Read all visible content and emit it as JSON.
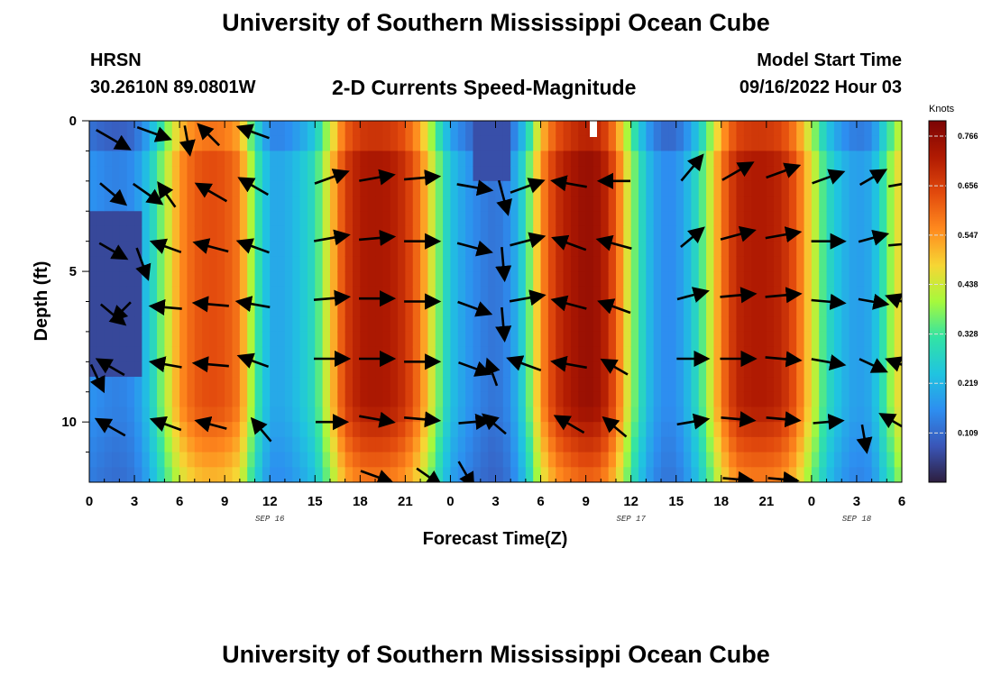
{
  "header": {
    "title_top": "University of Southern Mississippi Ocean Cube",
    "title_bottom": "University of Southern Mississippi Ocean Cube",
    "station": "HRSN",
    "location": "30.2610N  89.0801W",
    "product": "2-D Currents Speed-Magnitude",
    "model_start_label": "Model Start Time",
    "model_start_value": "09/16/2022 Hour 03"
  },
  "chart_data": {
    "type": "heatmap",
    "title": "2-D Currents Speed-Magnitude",
    "xlabel": "Forecast Time(Z)",
    "ylabel": "Depth (ft)",
    "x_range_hours_from_sep16_00z": [
      0,
      54
    ],
    "ylim_depth_ft": [
      0,
      12
    ],
    "x_ticks": [
      {
        "hour": 0,
        "label": "0"
      },
      {
        "hour": 3,
        "label": "3"
      },
      {
        "hour": 6,
        "label": "6"
      },
      {
        "hour": 9,
        "label": "9"
      },
      {
        "hour": 12,
        "label": "12"
      },
      {
        "hour": 15,
        "label": "15"
      },
      {
        "hour": 18,
        "label": "18"
      },
      {
        "hour": 21,
        "label": "21"
      },
      {
        "hour": 24,
        "label": "0"
      },
      {
        "hour": 27,
        "label": "3"
      },
      {
        "hour": 30,
        "label": "6"
      },
      {
        "hour": 33,
        "label": "9"
      },
      {
        "hour": 36,
        "label": "12"
      },
      {
        "hour": 39,
        "label": "15"
      },
      {
        "hour": 42,
        "label": "18"
      },
      {
        "hour": 45,
        "label": "21"
      },
      {
        "hour": 48,
        "label": "0"
      },
      {
        "hour": 51,
        "label": "3"
      },
      {
        "hour": 54,
        "label": "6"
      }
    ],
    "date_labels": [
      {
        "hour": 12,
        "label": "SEP 16"
      },
      {
        "hour": 36,
        "label": "SEP 17"
      },
      {
        "hour": 51,
        "label": "SEP 18"
      }
    ],
    "y_ticks": [
      {
        "depth": 0,
        "label": "0"
      },
      {
        "depth": 5,
        "label": "5"
      },
      {
        "depth": 10,
        "label": "10"
      }
    ],
    "colorbar": {
      "unit": "Knots",
      "ticks": [
        "0.766",
        "0.656",
        "0.547",
        "0.438",
        "0.328",
        "0.219",
        "0.109"
      ],
      "min": 0.0,
      "max": 0.8
    },
    "speed_profile_by_hour_knots": [
      [
        0,
        0.17
      ],
      [
        1,
        0.15
      ],
      [
        2,
        0.14
      ],
      [
        3,
        0.16
      ],
      [
        4,
        0.25
      ],
      [
        5,
        0.4
      ],
      [
        6,
        0.55
      ],
      [
        7,
        0.62
      ],
      [
        8,
        0.64
      ],
      [
        9,
        0.63
      ],
      [
        10,
        0.58
      ],
      [
        11,
        0.35
      ],
      [
        12,
        0.2
      ],
      [
        13,
        0.2
      ],
      [
        14,
        0.24
      ],
      [
        15,
        0.3
      ],
      [
        16,
        0.48
      ],
      [
        17,
        0.66
      ],
      [
        18,
        0.72
      ],
      [
        19,
        0.73
      ],
      [
        20,
        0.72
      ],
      [
        21,
        0.68
      ],
      [
        22,
        0.58
      ],
      [
        23,
        0.4
      ],
      [
        24,
        0.24
      ],
      [
        25,
        0.18
      ],
      [
        26,
        0.14
      ],
      [
        27,
        0.12
      ],
      [
        28,
        0.16
      ],
      [
        29,
        0.3
      ],
      [
        30,
        0.55
      ],
      [
        31,
        0.68
      ],
      [
        32,
        0.73
      ],
      [
        33,
        0.76
      ],
      [
        34,
        0.74
      ],
      [
        35,
        0.62
      ],
      [
        36,
        0.4
      ],
      [
        37,
        0.24
      ],
      [
        38,
        0.16
      ],
      [
        39,
        0.16
      ],
      [
        40,
        0.24
      ],
      [
        41,
        0.38
      ],
      [
        42,
        0.58
      ],
      [
        43,
        0.7
      ],
      [
        44,
        0.72
      ],
      [
        45,
        0.72
      ],
      [
        46,
        0.7
      ],
      [
        47,
        0.62
      ],
      [
        48,
        0.46
      ],
      [
        49,
        0.3
      ],
      [
        50,
        0.22
      ],
      [
        51,
        0.18
      ],
      [
        52,
        0.2
      ],
      [
        53,
        0.35
      ],
      [
        54,
        0.5
      ]
    ],
    "vectors": [
      {
        "hour": 1.5,
        "depth": 0.6,
        "angle_deg": -30,
        "length": 40
      },
      {
        "hour": 4.2,
        "depth": 0.4,
        "angle_deg": -20,
        "length": 36
      },
      {
        "hour": 6.5,
        "depth": 0.6,
        "angle_deg": -80,
        "length": 30
      },
      {
        "hour": 8.0,
        "depth": 0.5,
        "angle_deg": 135,
        "length": 30
      },
      {
        "hour": 11.0,
        "depth": 0.4,
        "angle_deg": 160,
        "length": 34
      },
      {
        "hour": 1.5,
        "depth": 2.4,
        "angle_deg": -40,
        "length": 34
      },
      {
        "hour": 3.8,
        "depth": 2.4,
        "angle_deg": -35,
        "length": 36
      },
      {
        "hour": 5.2,
        "depth": 2.5,
        "angle_deg": 125,
        "length": 30
      },
      {
        "hour": 8.2,
        "depth": 2.4,
        "angle_deg": 150,
        "length": 36
      },
      {
        "hour": 11.0,
        "depth": 2.2,
        "angle_deg": 150,
        "length": 34
      },
      {
        "hour": 16.0,
        "depth": 1.9,
        "angle_deg": 20,
        "length": 36
      },
      {
        "hour": 19.0,
        "depth": 1.9,
        "angle_deg": 10,
        "length": 36
      },
      {
        "hour": 22.0,
        "depth": 1.9,
        "angle_deg": 5,
        "length": 36
      },
      {
        "hour": 25.5,
        "depth": 2.2,
        "angle_deg": -10,
        "length": 36
      },
      {
        "hour": 27.5,
        "depth": 2.5,
        "angle_deg": -75,
        "length": 36
      },
      {
        "hour": 29.0,
        "depth": 2.2,
        "angle_deg": 20,
        "length": 36
      },
      {
        "hour": 32.0,
        "depth": 2.1,
        "angle_deg": 170,
        "length": 36
      },
      {
        "hour": 35.0,
        "depth": 2.0,
        "angle_deg": 180,
        "length": 32
      },
      {
        "hour": 40.0,
        "depth": 1.6,
        "angle_deg": 50,
        "length": 34
      },
      {
        "hour": 43.0,
        "depth": 1.7,
        "angle_deg": 30,
        "length": 36
      },
      {
        "hour": 46.0,
        "depth": 1.7,
        "angle_deg": 20,
        "length": 36
      },
      {
        "hour": 49.0,
        "depth": 1.9,
        "angle_deg": 20,
        "length": 34
      },
      {
        "hour": 52.0,
        "depth": 1.9,
        "angle_deg": 30,
        "length": 30
      },
      {
        "hour": 54.0,
        "depth": 2.1,
        "angle_deg": 10,
        "length": 30
      },
      {
        "hour": 1.5,
        "depth": 4.3,
        "angle_deg": -30,
        "length": 32
      },
      {
        "hour": 3.5,
        "depth": 4.7,
        "angle_deg": -70,
        "length": 34
      },
      {
        "hour": 5.2,
        "depth": 4.2,
        "angle_deg": 160,
        "length": 32
      },
      {
        "hour": 8.2,
        "depth": 4.2,
        "angle_deg": 165,
        "length": 36
      },
      {
        "hour": 11.0,
        "depth": 4.2,
        "angle_deg": 160,
        "length": 34
      },
      {
        "hour": 16.0,
        "depth": 3.9,
        "angle_deg": 10,
        "length": 36
      },
      {
        "hour": 19.0,
        "depth": 3.9,
        "angle_deg": 5,
        "length": 36
      },
      {
        "hour": 22.0,
        "depth": 4.0,
        "angle_deg": 0,
        "length": 36
      },
      {
        "hour": 25.5,
        "depth": 4.2,
        "angle_deg": -15,
        "length": 36
      },
      {
        "hour": 27.5,
        "depth": 4.7,
        "angle_deg": -85,
        "length": 34
      },
      {
        "hour": 29.0,
        "depth": 4.0,
        "angle_deg": 15,
        "length": 36
      },
      {
        "hour": 32.0,
        "depth": 4.1,
        "angle_deg": 160,
        "length": 36
      },
      {
        "hour": 35.0,
        "depth": 4.1,
        "angle_deg": 165,
        "length": 36
      },
      {
        "hour": 40.0,
        "depth": 3.9,
        "angle_deg": 40,
        "length": 30
      },
      {
        "hour": 43.0,
        "depth": 3.8,
        "angle_deg": 15,
        "length": 36
      },
      {
        "hour": 46.0,
        "depth": 3.8,
        "angle_deg": 10,
        "length": 36
      },
      {
        "hour": 49.0,
        "depth": 4.0,
        "angle_deg": 0,
        "length": 34
      },
      {
        "hour": 52.0,
        "depth": 3.9,
        "angle_deg": 15,
        "length": 30
      },
      {
        "hour": 54.0,
        "depth": 4.1,
        "angle_deg": 5,
        "length": 30
      },
      {
        "hour": 1.5,
        "depth": 6.4,
        "angle_deg": -40,
        "length": 32
      },
      {
        "hour": 2.2,
        "depth": 6.3,
        "angle_deg": -135,
        "length": 26
      },
      {
        "hour": 5.2,
        "depth": 6.2,
        "angle_deg": 175,
        "length": 32
      },
      {
        "hour": 8.2,
        "depth": 6.1,
        "angle_deg": 175,
        "length": 36
      },
      {
        "hour": 11.0,
        "depth": 6.1,
        "angle_deg": 170,
        "length": 34
      },
      {
        "hour": 16.0,
        "depth": 5.9,
        "angle_deg": 5,
        "length": 36
      },
      {
        "hour": 19.0,
        "depth": 5.9,
        "angle_deg": 0,
        "length": 36
      },
      {
        "hour": 22.0,
        "depth": 6.0,
        "angle_deg": 0,
        "length": 36
      },
      {
        "hour": 25.5,
        "depth": 6.2,
        "angle_deg": -20,
        "length": 36
      },
      {
        "hour": 27.5,
        "depth": 6.7,
        "angle_deg": -85,
        "length": 34
      },
      {
        "hour": 29.0,
        "depth": 5.9,
        "angle_deg": 10,
        "length": 36
      },
      {
        "hour": 32.0,
        "depth": 6.1,
        "angle_deg": 165,
        "length": 36
      },
      {
        "hour": 35.0,
        "depth": 6.2,
        "angle_deg": 160,
        "length": 34
      },
      {
        "hour": 40.0,
        "depth": 5.8,
        "angle_deg": 15,
        "length": 32
      },
      {
        "hour": 43.0,
        "depth": 5.8,
        "angle_deg": 5,
        "length": 36
      },
      {
        "hour": 46.0,
        "depth": 5.8,
        "angle_deg": 5,
        "length": 36
      },
      {
        "hour": 49.0,
        "depth": 6.0,
        "angle_deg": -5,
        "length": 34
      },
      {
        "hour": 52.0,
        "depth": 6.0,
        "angle_deg": -10,
        "length": 30
      },
      {
        "hour": 54.0,
        "depth": 6.0,
        "angle_deg": 160,
        "length": 30
      },
      {
        "hour": 0.5,
        "depth": 8.5,
        "angle_deg": -65,
        "length": 30
      },
      {
        "hour": 1.5,
        "depth": 8.2,
        "angle_deg": 150,
        "length": 32
      },
      {
        "hour": 5.2,
        "depth": 8.1,
        "angle_deg": 170,
        "length": 32
      },
      {
        "hour": 8.2,
        "depth": 8.1,
        "angle_deg": 175,
        "length": 36
      },
      {
        "hour": 11.0,
        "depth": 8.0,
        "angle_deg": 160,
        "length": 32
      },
      {
        "hour": 16.0,
        "depth": 7.9,
        "angle_deg": 0,
        "length": 36
      },
      {
        "hour": 19.0,
        "depth": 7.9,
        "angle_deg": 0,
        "length": 36
      },
      {
        "hour": 22.0,
        "depth": 8.0,
        "angle_deg": 0,
        "length": 36
      },
      {
        "hour": 25.5,
        "depth": 8.2,
        "angle_deg": -20,
        "length": 34
      },
      {
        "hour": 26.8,
        "depth": 8.4,
        "angle_deg": 110,
        "length": 28
      },
      {
        "hour": 29.0,
        "depth": 8.1,
        "angle_deg": 160,
        "length": 36
      },
      {
        "hour": 32.0,
        "depth": 8.1,
        "angle_deg": 170,
        "length": 36
      },
      {
        "hour": 35.0,
        "depth": 8.2,
        "angle_deg": 150,
        "length": 30
      },
      {
        "hour": 40.0,
        "depth": 7.9,
        "angle_deg": 0,
        "length": 32
      },
      {
        "hour": 43.0,
        "depth": 7.9,
        "angle_deg": 0,
        "length": 36
      },
      {
        "hour": 46.0,
        "depth": 7.9,
        "angle_deg": -5,
        "length": 36
      },
      {
        "hour": 49.0,
        "depth": 8.0,
        "angle_deg": -10,
        "length": 34
      },
      {
        "hour": 52.0,
        "depth": 8.1,
        "angle_deg": -25,
        "length": 30
      },
      {
        "hour": 54.0,
        "depth": 8.1,
        "angle_deg": 160,
        "length": 30
      },
      {
        "hour": 1.5,
        "depth": 10.2,
        "angle_deg": 150,
        "length": 34
      },
      {
        "hour": 5.2,
        "depth": 10.1,
        "angle_deg": 160,
        "length": 32
      },
      {
        "hour": 8.2,
        "depth": 10.1,
        "angle_deg": 165,
        "length": 32
      },
      {
        "hour": 11.5,
        "depth": 10.3,
        "angle_deg": 130,
        "length": 30
      },
      {
        "hour": 16.0,
        "depth": 10.0,
        "angle_deg": 0,
        "length": 32
      },
      {
        "hour": 19.0,
        "depth": 9.9,
        "angle_deg": -10,
        "length": 36
      },
      {
        "hour": 22.0,
        "depth": 9.9,
        "angle_deg": -5,
        "length": 36
      },
      {
        "hour": 25.5,
        "depth": 10.0,
        "angle_deg": 5,
        "length": 32
      },
      {
        "hour": 27.0,
        "depth": 10.1,
        "angle_deg": 140,
        "length": 30
      },
      {
        "hour": 32.0,
        "depth": 10.1,
        "angle_deg": 150,
        "length": 34
      },
      {
        "hour": 35.0,
        "depth": 10.2,
        "angle_deg": 140,
        "length": 30
      },
      {
        "hour": 40.0,
        "depth": 10.0,
        "angle_deg": 10,
        "length": 32
      },
      {
        "hour": 43.0,
        "depth": 9.9,
        "angle_deg": -5,
        "length": 34
      },
      {
        "hour": 46.0,
        "depth": 9.9,
        "angle_deg": -5,
        "length": 34
      },
      {
        "hour": 49.0,
        "depth": 10.0,
        "angle_deg": 5,
        "length": 30
      },
      {
        "hour": 51.5,
        "depth": 10.5,
        "angle_deg": -80,
        "length": 28
      },
      {
        "hour": 53.5,
        "depth": 10.0,
        "angle_deg": 150,
        "length": 30
      },
      {
        "hour": 19.0,
        "depth": 11.8,
        "angle_deg": -20,
        "length": 34
      },
      {
        "hour": 22.5,
        "depth": 11.8,
        "angle_deg": -35,
        "length": 30
      },
      {
        "hour": 25.0,
        "depth": 11.7,
        "angle_deg": -60,
        "length": 30
      },
      {
        "hour": 43.0,
        "depth": 11.9,
        "angle_deg": -5,
        "length": 30
      },
      {
        "hour": 46.0,
        "depth": 11.9,
        "angle_deg": -5,
        "length": 30
      }
    ]
  },
  "colors": {
    "palette": [
      "#2d1e3e",
      "#3a56b8",
      "#2d8ef0",
      "#20c4e0",
      "#32e3a5",
      "#a6f93c",
      "#f6d634",
      "#ff8a1e",
      "#e24a0d",
      "#b01a02",
      "#7c0404"
    ],
    "arrow": "#000000",
    "axis": "#000000",
    "gridline": "#bbbbbb"
  }
}
